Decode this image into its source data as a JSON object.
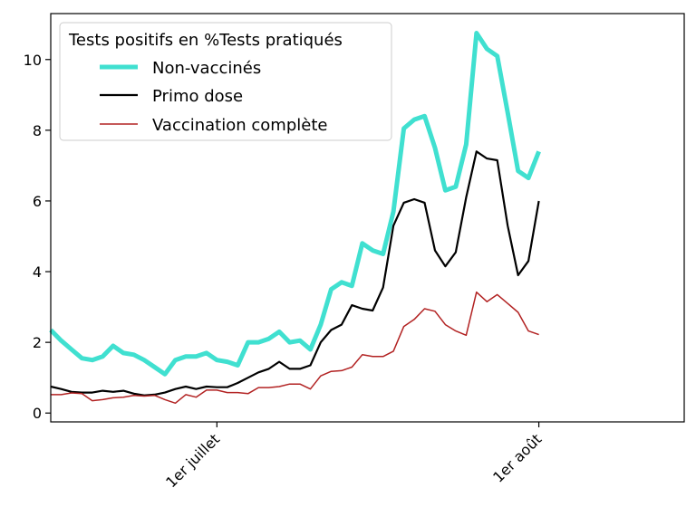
{
  "chart_data": {
    "type": "line",
    "legend": {
      "title": "Tests positifs en %Tests pratiqués",
      "placement": "top-left"
    },
    "x_axis": {
      "type": "date",
      "range": [
        "2021-06-15",
        "2021-08-15"
      ],
      "ticks": [
        {
          "date": "2021-07-01",
          "label": "1er juillet"
        },
        {
          "date": "2021-08-01",
          "label": "1er août"
        }
      ]
    },
    "y_axis": {
      "range": [
        -0.25,
        11.3
      ],
      "ticks": [
        0,
        2,
        4,
        6,
        8,
        10
      ]
    },
    "grid": false,
    "dates": [
      "2021-06-15",
      "2021-06-16",
      "2021-06-17",
      "2021-06-18",
      "2021-06-19",
      "2021-06-20",
      "2021-06-21",
      "2021-06-22",
      "2021-06-23",
      "2021-06-24",
      "2021-06-25",
      "2021-06-26",
      "2021-06-27",
      "2021-06-28",
      "2021-06-29",
      "2021-06-30",
      "2021-07-01",
      "2021-07-02",
      "2021-07-03",
      "2021-07-04",
      "2021-07-05",
      "2021-07-06",
      "2021-07-07",
      "2021-07-08",
      "2021-07-09",
      "2021-07-10",
      "2021-07-11",
      "2021-07-12",
      "2021-07-13",
      "2021-07-14",
      "2021-07-15",
      "2021-07-16",
      "2021-07-17",
      "2021-07-18",
      "2021-07-19",
      "2021-07-20",
      "2021-07-21",
      "2021-07-22",
      "2021-07-23",
      "2021-07-24",
      "2021-07-25",
      "2021-07-26",
      "2021-07-27",
      "2021-07-28",
      "2021-07-29",
      "2021-07-30",
      "2021-07-31",
      "2021-08-01"
    ],
    "series": [
      {
        "name": "Non-vaccinés",
        "color": "#40e0d0",
        "values": [
          2.35,
          2.05,
          1.8,
          1.55,
          1.5,
          1.6,
          1.9,
          1.7,
          1.65,
          1.5,
          1.3,
          1.1,
          1.5,
          1.6,
          1.6,
          1.7,
          1.5,
          1.45,
          1.35,
          2.0,
          2.0,
          2.1,
          2.3,
          2.0,
          2.05,
          1.8,
          2.5,
          3.5,
          3.7,
          3.6,
          4.8,
          4.6,
          4.5,
          5.7,
          8.05,
          8.3,
          8.4,
          7.5,
          6.3,
          6.4,
          7.6,
          10.75,
          10.3,
          10.1,
          8.5,
          6.85,
          6.65,
          7.4
        ]
      },
      {
        "name": "Primo dose",
        "color": "#000000",
        "values": [
          0.75,
          0.68,
          0.6,
          0.58,
          0.58,
          0.63,
          0.6,
          0.63,
          0.55,
          0.5,
          0.52,
          0.58,
          0.68,
          0.75,
          0.68,
          0.75,
          0.73,
          0.73,
          0.85,
          1.0,
          1.15,
          1.25,
          1.45,
          1.25,
          1.25,
          1.35,
          2.0,
          2.35,
          2.5,
          3.05,
          2.95,
          2.9,
          3.55,
          5.3,
          5.95,
          6.05,
          5.95,
          4.6,
          4.15,
          4.55,
          6.1,
          7.4,
          7.2,
          7.15,
          5.3,
          3.9,
          4.3,
          6.0
        ]
      },
      {
        "name": "Vaccination complète",
        "color": "#b22222",
        "values": [
          0.52,
          0.52,
          0.57,
          0.55,
          0.35,
          0.38,
          0.43,
          0.45,
          0.5,
          0.48,
          0.5,
          0.38,
          0.28,
          0.52,
          0.45,
          0.65,
          0.65,
          0.58,
          0.58,
          0.55,
          0.72,
          0.72,
          0.75,
          0.82,
          0.82,
          0.68,
          1.05,
          1.18,
          1.2,
          1.3,
          1.65,
          1.6,
          1.6,
          1.75,
          2.45,
          2.65,
          2.95,
          2.88,
          2.5,
          2.32,
          2.2,
          3.42,
          3.15,
          3.35,
          3.1,
          2.85,
          2.32,
          2.22
        ]
      }
    ]
  }
}
